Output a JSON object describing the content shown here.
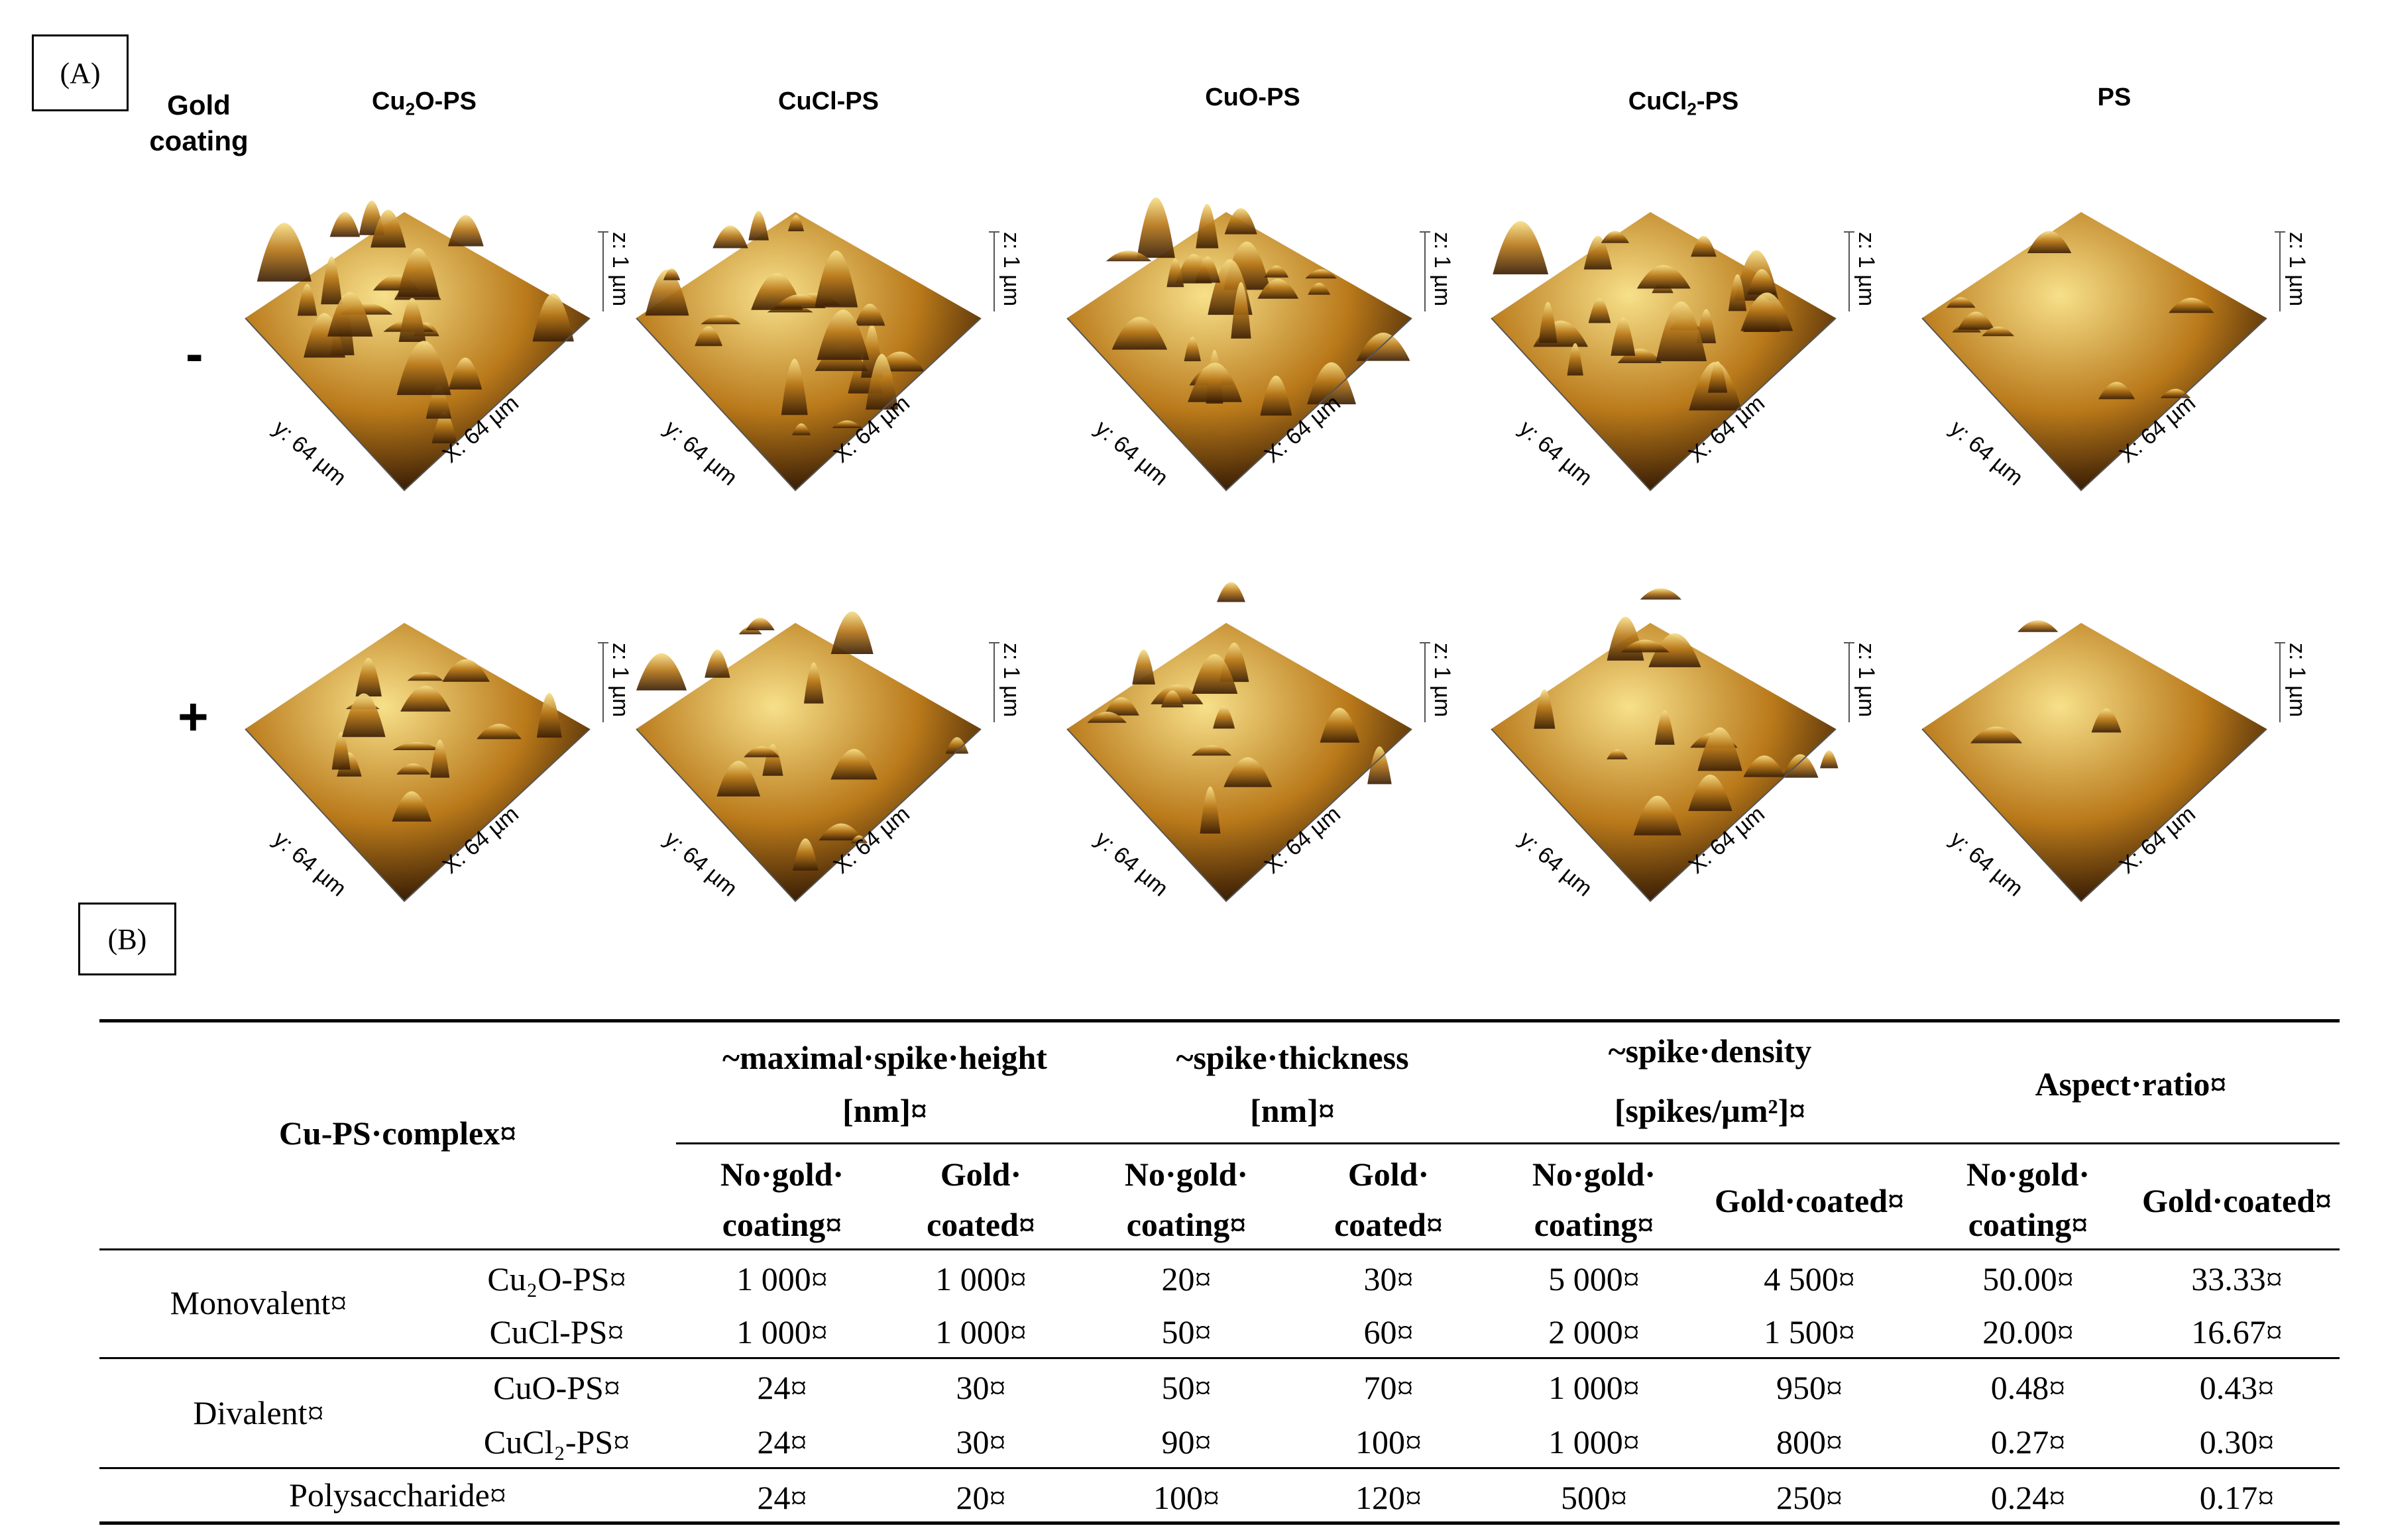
{
  "panel_a_label": "(A)",
  "panel_b_label": "(B)",
  "gold_coating_label": [
    "Gold",
    "coating"
  ],
  "row_labels": [
    "-",
    "+"
  ],
  "column_titles": [
    "Cu2O-PS",
    "CuCl-PS",
    "CuO-PS",
    "CuCl2-PS",
    "PS"
  ],
  "axis_labels": {
    "y": "y: 64 µm",
    "x": "X: 64 µm",
    "z": "z: 1 µm"
  },
  "colors": {
    "peak": "#f7e08a",
    "mid": "#b9791a",
    "deep": "#3a1e05",
    "rule": "#000000"
  },
  "table": {
    "group_header": "Cu-PS·complex¤",
    "col_groups": [
      {
        "line1": "~maximal·spike·height",
        "line2": "[nm]¤"
      },
      {
        "line1": "~spike·thickness",
        "line2": "[nm]¤"
      },
      {
        "line1": "~spike·density",
        "line2": "[spikes/µm²]¤"
      },
      {
        "line1": "Aspect·ratio¤",
        "line2": ""
      }
    ],
    "sub_headers": [
      {
        "line1": "No·gold·",
        "line2": "coating¤"
      },
      {
        "line1": "Gold·",
        "line2": "coated¤"
      },
      {
        "line1": "No·gold·",
        "line2": "coating¤"
      },
      {
        "line1": "Gold·",
        "line2": "coated¤"
      },
      {
        "line1": "No·gold·",
        "line2": "coating¤"
      },
      {
        "line1": "Gold·coated¤",
        "line2": ""
      },
      {
        "line1": "No·gold·",
        "line2": "coating¤"
      },
      {
        "line1": "Gold·coated¤",
        "line2": ""
      }
    ],
    "groups": [
      "Monovalent¤",
      "Divalent¤",
      "Polysaccharide¤"
    ],
    "rows": [
      {
        "name": "Cu₂O-PS¤",
        "values": [
          "1 000¤",
          "1 000¤",
          "20¤",
          "30¤",
          "5 000¤",
          "4 500¤",
          "50.00¤",
          "33.33¤"
        ]
      },
      {
        "name": "CuCl-PS¤",
        "values": [
          "1 000¤",
          "1 000¤",
          "50¤",
          "60¤",
          "2 000¤",
          "1 500¤",
          "20.00¤",
          "16.67¤"
        ]
      },
      {
        "name": "CuO-PS¤",
        "values": [
          "24¤",
          "30¤",
          "50¤",
          "70¤",
          "1 000¤",
          "950¤",
          "0.48¤",
          "0.43¤"
        ]
      },
      {
        "name": "CuCl₂-PS¤",
        "values": [
          "24¤",
          "30¤",
          "90¤",
          "100¤",
          "1 000¤",
          "800¤",
          "0.27¤",
          "0.30¤"
        ]
      },
      {
        "name": "",
        "values": [
          "24¤",
          "20¤",
          "100¤",
          "120¤",
          "500¤",
          "250¤",
          "0.24¤",
          "0.17¤"
        ]
      }
    ]
  }
}
